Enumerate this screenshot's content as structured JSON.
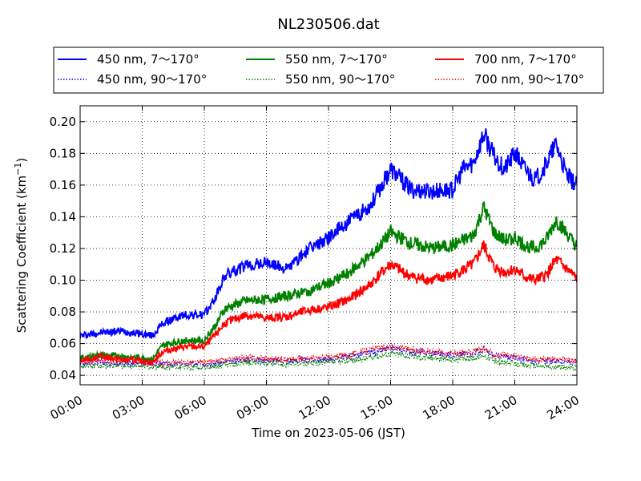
{
  "chart_data": {
    "type": "line",
    "title": "NL230506.dat",
    "xlabel": "Time on 2023-05-06 (JST)",
    "ylabel": "Scattering Coefficient (km",
    "ylabel_sup": "−1",
    "ylabel_close": ")",
    "xlim": [
      0,
      24
    ],
    "ylim": [
      0.034,
      0.21
    ],
    "x_ticks": [
      0,
      3,
      6,
      9,
      12,
      15,
      18,
      21,
      24
    ],
    "x_tick_labels": [
      "00:00",
      "03:00",
      "06:00",
      "09:00",
      "12:00",
      "15:00",
      "18:00",
      "21:00",
      "24:00"
    ],
    "y_ticks": [
      0.04,
      0.06,
      0.08,
      0.1,
      0.12,
      0.14,
      0.16,
      0.18,
      0.2
    ],
    "y_tick_labels": [
      "0.04",
      "0.06",
      "0.08",
      "0.10",
      "0.12",
      "0.14",
      "0.16",
      "0.18",
      "0.20"
    ],
    "grid": true,
    "legend_position": "top",
    "series": [
      {
        "name": "450 nm, 7～170°",
        "color": "#0000ff",
        "style": "solid",
        "x": [
          0,
          1,
          2,
          3,
          3.5,
          4,
          5,
          6,
          6.5,
          7,
          8,
          9,
          10,
          11,
          12,
          13,
          14,
          14.5,
          15,
          16,
          17,
          18,
          18.5,
          19,
          19.5,
          20,
          20.5,
          21,
          21.5,
          22,
          22.5,
          23,
          23.5,
          24
        ],
        "y": [
          0.065,
          0.067,
          0.068,
          0.066,
          0.065,
          0.073,
          0.078,
          0.078,
          0.088,
          0.103,
          0.109,
          0.111,
          0.107,
          0.119,
          0.127,
          0.137,
          0.147,
          0.158,
          0.17,
          0.157,
          0.156,
          0.157,
          0.17,
          0.174,
          0.192,
          0.178,
          0.17,
          0.18,
          0.17,
          0.163,
          0.173,
          0.186,
          0.166,
          0.16
        ]
      },
      {
        "name": "450 nm, 90～170°",
        "color": "#0000ff",
        "style": "dotted",
        "x": [
          0,
          2,
          4,
          6,
          8,
          10,
          12,
          13,
          14,
          15,
          16,
          18,
          19,
          19.5,
          20,
          21,
          22,
          23,
          24
        ],
        "y": [
          0.048,
          0.048,
          0.047,
          0.047,
          0.05,
          0.049,
          0.05,
          0.052,
          0.054,
          0.057,
          0.055,
          0.053,
          0.054,
          0.056,
          0.052,
          0.051,
          0.049,
          0.049,
          0.048
        ]
      },
      {
        "name": "550 nm, 7～170°",
        "color": "#008000",
        "style": "solid",
        "x": [
          0,
          1,
          2,
          3,
          3.5,
          4,
          5,
          6,
          6.5,
          7,
          8,
          9,
          10,
          11,
          12,
          13,
          14,
          14.5,
          15,
          16,
          17,
          18,
          19,
          19.5,
          20,
          20.5,
          21,
          21.5,
          22,
          22.5,
          23,
          24
        ],
        "y": [
          0.051,
          0.053,
          0.052,
          0.051,
          0.05,
          0.059,
          0.062,
          0.062,
          0.071,
          0.082,
          0.087,
          0.088,
          0.09,
          0.093,
          0.098,
          0.105,
          0.115,
          0.122,
          0.13,
          0.123,
          0.12,
          0.122,
          0.128,
          0.146,
          0.13,
          0.125,
          0.127,
          0.122,
          0.12,
          0.125,
          0.138,
          0.121
        ]
      },
      {
        "name": "550 nm, 90～170°",
        "color": "#008000",
        "style": "dotted",
        "x": [
          0,
          2,
          4,
          6,
          8,
          10,
          12,
          13,
          14,
          15,
          16,
          18,
          19,
          19.5,
          20,
          21,
          22,
          23,
          24
        ],
        "y": [
          0.046,
          0.046,
          0.045,
          0.045,
          0.048,
          0.047,
          0.048,
          0.049,
          0.051,
          0.054,
          0.052,
          0.05,
          0.051,
          0.053,
          0.049,
          0.047,
          0.046,
          0.045,
          0.045
        ]
      },
      {
        "name": "700 nm, 7～170°",
        "color": "#ff0000",
        "style": "solid",
        "x": [
          0,
          1,
          2,
          3,
          3.5,
          4,
          5,
          6,
          6.5,
          7,
          8,
          9,
          10,
          11,
          12,
          13,
          14,
          14.5,
          15,
          16,
          17,
          18,
          19,
          19.5,
          20,
          20.5,
          21,
          21.5,
          22,
          22.5,
          23,
          24
        ],
        "y": [
          0.049,
          0.052,
          0.05,
          0.049,
          0.048,
          0.055,
          0.058,
          0.058,
          0.065,
          0.073,
          0.078,
          0.076,
          0.077,
          0.081,
          0.083,
          0.088,
          0.097,
          0.104,
          0.11,
          0.102,
          0.1,
          0.103,
          0.11,
          0.122,
          0.108,
          0.105,
          0.107,
          0.102,
          0.1,
          0.103,
          0.113,
          0.101
        ]
      },
      {
        "name": "700 nm, 90～170°",
        "color": "#ff0000",
        "style": "dotted",
        "x": [
          0,
          2,
          4,
          6,
          8,
          10,
          12,
          13,
          14,
          15,
          16,
          18,
          19,
          19.5,
          20,
          21,
          22,
          23,
          24
        ],
        "y": [
          0.049,
          0.049,
          0.048,
          0.048,
          0.051,
          0.05,
          0.051,
          0.053,
          0.056,
          0.058,
          0.056,
          0.054,
          0.055,
          0.057,
          0.053,
          0.052,
          0.05,
          0.05,
          0.049
        ]
      }
    ]
  }
}
